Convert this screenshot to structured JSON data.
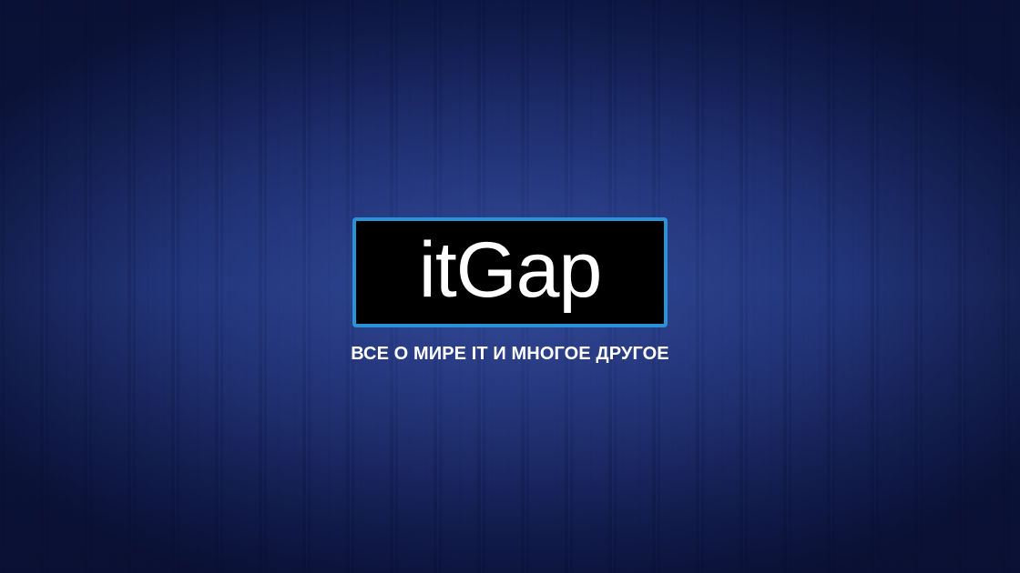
{
  "brand": {
    "logo_text": "itGap",
    "tagline": "ВСЕ О МИРЕ IT И МНОГОЕ ДРУГОЕ"
  },
  "colors": {
    "logo_border": "#2a93d8",
    "logo_background": "#000000",
    "text": "#ffffff",
    "background": "#1a2a60"
  }
}
